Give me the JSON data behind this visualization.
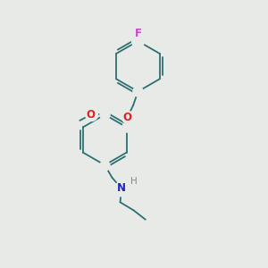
{
  "background_color": "#e8eae8",
  "bond_color": "#2d7070",
  "bond_width": 1.3,
  "atom_labels": {
    "F": {
      "color": "#cc44cc",
      "fontsize": 8.5
    },
    "O": {
      "color": "#dd2020",
      "fontsize": 8.5
    },
    "N": {
      "color": "#2020cc",
      "fontsize": 8.5
    },
    "H": {
      "color": "#888888",
      "fontsize": 7.5
    }
  },
  "figsize": [
    3.0,
    3.0
  ],
  "dpi": 100
}
